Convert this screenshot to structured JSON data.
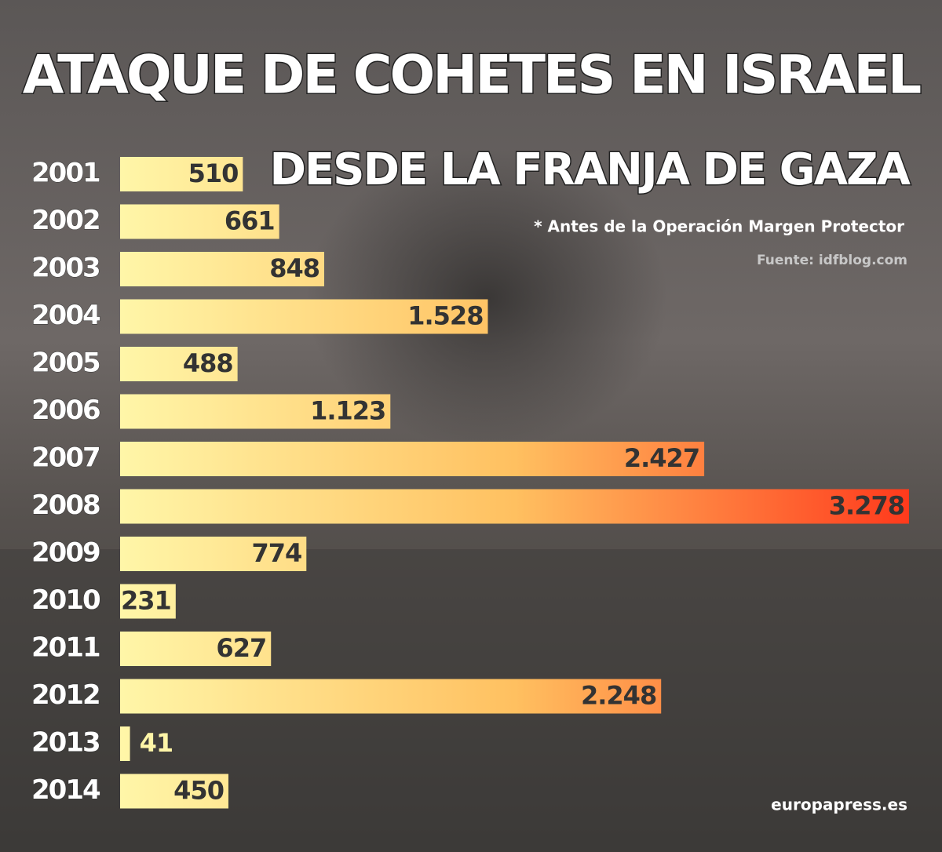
{
  "chart_data": {
    "type": "bar",
    "orientation": "horizontal",
    "title": "ATAQUE DE COHETES EN ISRAEL",
    "subtitle": "DESDE LA FRANJA DE GAZA",
    "note": "* Antes de la Operación Margen Protector",
    "source": "Fuente: idfblog.com",
    "logo": "europapress.es",
    "categories": [
      "2001",
      "2002",
      "2003",
      "2004",
      "2005",
      "2006",
      "2007",
      "2008",
      "2009",
      "2010",
      "2011",
      "2012",
      "2013",
      "2014"
    ],
    "values": [
      510,
      661,
      848,
      1528,
      488,
      1123,
      2427,
      3278,
      774,
      231,
      627,
      2248,
      41,
      450
    ],
    "value_labels": [
      "510",
      "661",
      "848",
      "1.528",
      "488",
      "1.123",
      "2.427",
      "3.278",
      "774",
      "231",
      "627",
      "2.248",
      "41",
      "450"
    ],
    "colors": [
      "#fff6a8",
      "#ffc060",
      "#ff3a1c"
    ]
  }
}
